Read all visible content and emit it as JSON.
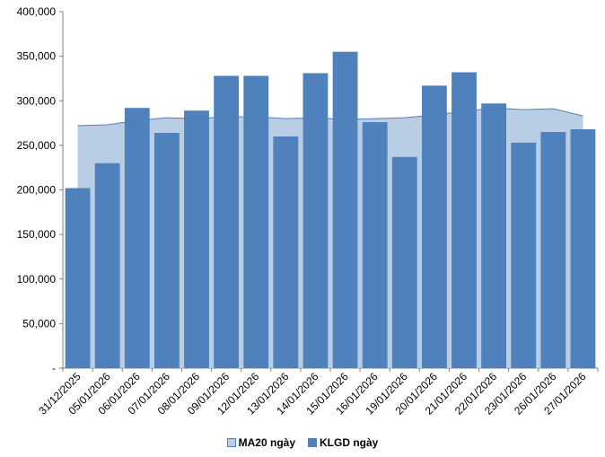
{
  "chart_data": {
    "type": "bar",
    "categories": [
      "31/12/2025",
      "05/01/2026",
      "06/01/2026",
      "07/01/2026",
      "08/01/2026",
      "09/01/2026",
      "12/01/2026",
      "13/01/2026",
      "14/01/2026",
      "15/01/2026",
      "16/01/2026",
      "19/01/2026",
      "20/01/2026",
      "21/01/2026",
      "22/01/2026",
      "23/01/2026",
      "26/01/2026",
      "27/01/2026"
    ],
    "y_ticks": [
      "-",
      "50,000",
      "100,000",
      "150,000",
      "200,000",
      "250,000",
      "300,000",
      "350,000",
      "400,000"
    ],
    "ylim": [
      0,
      400000
    ],
    "series": [
      {
        "name": "MA20 ngày",
        "kind": "area",
        "color": "#b9cde5",
        "values": [
          272000,
          273000,
          278000,
          281000,
          280000,
          282000,
          282000,
          280000,
          281000,
          279000,
          280000,
          281000,
          284000,
          288000,
          292000,
          290000,
          291000,
          283000
        ]
      },
      {
        "name": "KLGD ngày",
        "kind": "bar",
        "color": "#4f81bd",
        "values": [
          202000,
          230000,
          292000,
          264000,
          289000,
          328000,
          328000,
          260000,
          331000,
          355000,
          276000,
          237000,
          317000,
          332000,
          297000,
          253000,
          265000,
          268000
        ]
      }
    ],
    "legend": {
      "placement": "bottom"
    }
  }
}
